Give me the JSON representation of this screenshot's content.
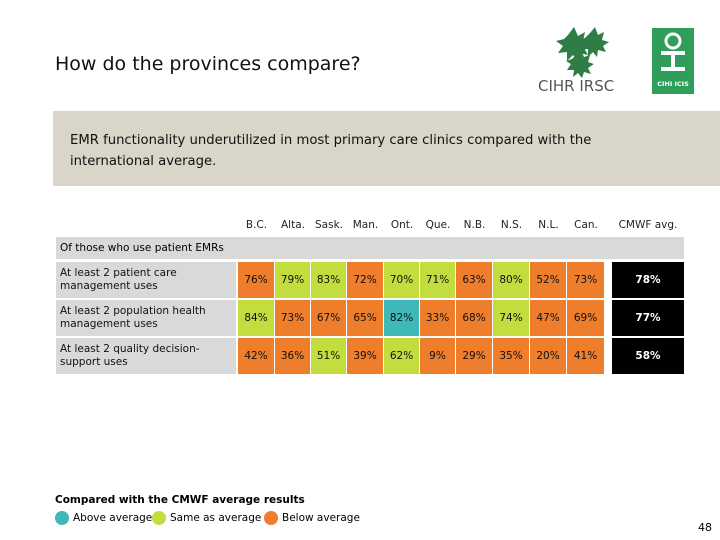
{
  "slide": {
    "title": "How do the provinces compare?",
    "banner": "EMR functionality underutilized in most primary care clinics compared with the international average.",
    "page_number": "48"
  },
  "logos": {
    "cihr_text": "CIHR IRSC",
    "cihi_text": "CIHI ICIS"
  },
  "colors": {
    "above": "#3fb8b8",
    "same": "#c3dc3e",
    "below": "#ee7d2c",
    "cmwf": "#000000",
    "label_bg": "#d9d9d9",
    "banner_bg": "#d9d5c8"
  },
  "chart_data": {
    "type": "table",
    "section_label": "Of those who use patient EMRs",
    "columns": [
      "B.C.",
      "Alta.",
      "Sask.",
      "Man.",
      "Ont.",
      "Que.",
      "N.B.",
      "N.S.",
      "N.L.",
      "Can.",
      "CMWF avg."
    ],
    "rows": [
      {
        "label": "At least 2 patient care management uses",
        "values": [
          "76%",
          "79%",
          "83%",
          "72%",
          "70%",
          "71%",
          "63%",
          "80%",
          "52%",
          "73%"
        ],
        "status": [
          "below",
          "same",
          "same",
          "below",
          "same",
          "same",
          "below",
          "same",
          "below",
          "below"
        ],
        "cmwf": "78%"
      },
      {
        "label": "At least 2 population health management uses",
        "values": [
          "84%",
          "73%",
          "67%",
          "65%",
          "82%",
          "33%",
          "68%",
          "74%",
          "47%",
          "69%"
        ],
        "status": [
          "same",
          "below",
          "below",
          "below",
          "above",
          "below",
          "below",
          "same",
          "below",
          "below"
        ],
        "cmwf": "77%"
      },
      {
        "label": "At least 2 quality decision-support uses",
        "values": [
          "42%",
          "36%",
          "51%",
          "39%",
          "62%",
          "9%",
          "29%",
          "35%",
          "20%",
          "41%"
        ],
        "status": [
          "below",
          "below",
          "same",
          "below",
          "same",
          "below",
          "below",
          "below",
          "below",
          "below"
        ],
        "cmwf": "58%"
      }
    ],
    "legend": {
      "title": "Compared with the CMWF average results",
      "items": [
        {
          "key": "above",
          "label": "Above average"
        },
        {
          "key": "same",
          "label": "Same as average"
        },
        {
          "key": "below",
          "label": "Below average"
        }
      ]
    }
  }
}
